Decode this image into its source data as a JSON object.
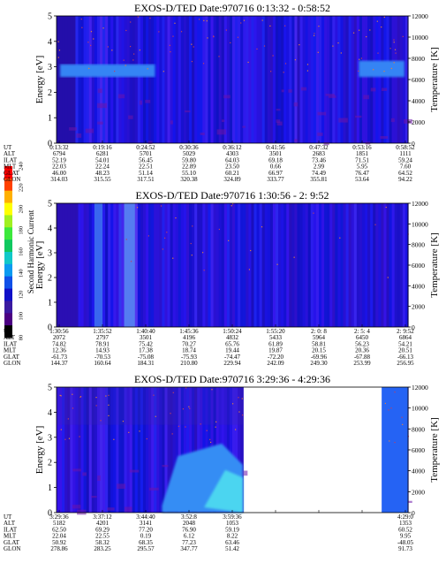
{
  "colorbar": {
    "label": "Second Harmonic Current",
    "ticks": [
      "80",
      "100",
      "120",
      "140",
      "160",
      "180",
      "200",
      "220",
      "240"
    ],
    "colors": [
      "#000000",
      "#4b0082",
      "#3a1aa0",
      "#1010c8",
      "#1050e8",
      "#0a9af0",
      "#10c8c8",
      "#10c860",
      "#3ce83c",
      "#a0f020",
      "#ffff00",
      "#ffb000",
      "#ff4000",
      "#ff0000"
    ]
  },
  "chart_data": [
    {
      "type": "heatmap",
      "title": "EXOS-D/TED   Date:970716  0:13:32 - 0:58:52",
      "ylabel": "Energy [eV]",
      "y2label": "Temperature [K]",
      "ylim": [
        0,
        5
      ],
      "yticks": [
        "0",
        "1",
        "2",
        "3",
        "4",
        "5"
      ],
      "y2ticks": [
        "0",
        "2000",
        "4000",
        "6000",
        "8000",
        "10000",
        "12000"
      ],
      "gaps": [],
      "rows": [
        {
          "name": "UT",
          "values": [
            "0:13:32",
            "0:19:16",
            "0:24:52",
            "0:30:36",
            "0:36:12",
            "0:41:56",
            "0:47:32",
            "0:53:16",
            "0:58:52"
          ]
        },
        {
          "name": "ALT",
          "values": [
            "6794",
            "6281",
            "5701",
            "5029",
            "4303",
            "3501",
            "2683",
            "1851",
            "1111"
          ]
        },
        {
          "name": "ILAT",
          "values": [
            "52.19",
            "54.01",
            "56.45",
            "59.80",
            "64.03",
            "69.18",
            "73.46",
            "71.51",
            "59.24"
          ]
        },
        {
          "name": "MLT",
          "values": [
            "22.03",
            "22.24",
            "22.51",
            "22.89",
            "23.50",
            "0.66",
            "2.99",
            "5.95",
            "7.60"
          ]
        },
        {
          "name": "GLAT",
          "values": [
            "46.00",
            "48.23",
            "51.14",
            "55.10",
            "60.21",
            "66.97",
            "74.49",
            "76.47",
            "64.52"
          ]
        },
        {
          "name": "GLON",
          "values": [
            "314.03",
            "315.55",
            "317.51",
            "320.38",
            "324.89",
            "333.77",
            "355.81",
            "53.64",
            "94.22"
          ]
        }
      ]
    },
    {
      "type": "heatmap",
      "title": "EXOS-D/TED   Date:970716  1:30:56 - 2: 9:52",
      "ylabel": "Energy [eV]",
      "y2label": "Temperature [K]",
      "ylim": [
        0,
        5
      ],
      "yticks": [
        "0",
        "1",
        "2",
        "3",
        "4",
        "5"
      ],
      "y2ticks": [
        "0",
        "2000",
        "4000",
        "6000",
        "8000",
        "10000",
        "12000"
      ],
      "gaps": [],
      "rows": [
        {
          "name": "UT",
          "values": [
            "1:30:56",
            "1:35:52",
            "1:40:40",
            "1:45:36",
            "1:50:24",
            "1:55:20",
            "2: 0: 8",
            "2: 5: 4",
            "2: 9:52"
          ]
        },
        {
          "name": "ALT",
          "values": [
            "2072",
            "2797",
            "3501",
            "4196",
            "4832",
            "5433",
            "5964",
            "6450",
            "6864"
          ]
        },
        {
          "name": "ILAT",
          "values": [
            "74.82",
            "78.91",
            "75.42",
            "70.27",
            "65.76",
            "61.89",
            "58.81",
            "56.23",
            "54.21"
          ]
        },
        {
          "name": "MLT",
          "values": [
            "12.36",
            "14.93",
            "17.38",
            "18.74",
            "19.44",
            "19.87",
            "20.15",
            "20.36",
            "20.51"
          ]
        },
        {
          "name": "GLAT",
          "values": [
            "-61.73",
            "-70.53",
            "-75.08",
            "-75.93",
            "-74.47",
            "-72.20",
            "-69.96",
            "-67.88",
            "-66.13"
          ]
        },
        {
          "name": "GLON",
          "values": [
            "144.37",
            "160.64",
            "184.31",
            "210.80",
            "229.94",
            "242.09",
            "249.30",
            "253.99",
            "256.95"
          ]
        }
      ]
    },
    {
      "type": "heatmap",
      "title": "EXOS-D/TED   Date:970716  3:29:36 - 4:29:36",
      "ylabel": "Energy [eV]",
      "y2label": "Temperature [K]",
      "ylim": [
        0,
        5
      ],
      "yticks": [
        "0",
        "1",
        "2",
        "3",
        "4",
        "5"
      ],
      "y2ticks": [
        "0",
        "2000",
        "4000",
        "6000",
        "8000",
        "10000",
        "12000"
      ],
      "gaps": [
        [
          0.53,
          0.925
        ]
      ],
      "rows": [
        {
          "name": "UT",
          "values": [
            "3:29:36",
            "3:37:12",
            "3:44:40",
            "3:52:8",
            "3:59:36",
            "",
            "",
            "",
            "4:29:0"
          ]
        },
        {
          "name": "ALT",
          "values": [
            "5182",
            "4201",
            "3141",
            "2048",
            "1053",
            "",
            "",
            "",
            "1353"
          ]
        },
        {
          "name": "ILAT",
          "values": [
            "62.50",
            "69.29",
            "77.20",
            "76.90",
            "59.19",
            "",
            "",
            "",
            "60.52"
          ]
        },
        {
          "name": "MLT",
          "values": [
            "22.04",
            "22.55",
            "0.19",
            "6.12",
            "8.22",
            "",
            "",
            "",
            "9.95"
          ]
        },
        {
          "name": "GLAT",
          "values": [
            "50.92",
            "58.32",
            "68.35",
            "77.23",
            "63.46",
            "",
            "",
            "",
            "-48.05"
          ]
        },
        {
          "name": "GLON",
          "values": [
            "278.86",
            "283.25",
            "295.57",
            "347.77",
            "51.42",
            "",
            "",
            "",
            "91.73"
          ]
        }
      ]
    }
  ]
}
